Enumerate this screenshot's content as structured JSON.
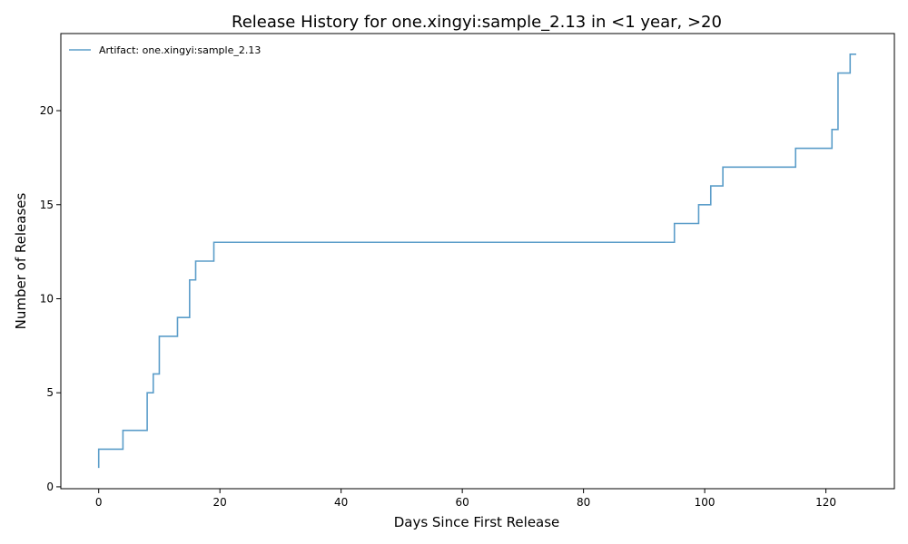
{
  "chart_data": {
    "type": "line",
    "step": "post",
    "title": "Release History for one.xingyi:sample_2.13 in <1 year, >20",
    "xlabel": "Days Since First Release",
    "ylabel": "Number of Releases",
    "xlim": [
      -6.25,
      131.3
    ],
    "ylim": [
      -0.1,
      24.1
    ],
    "xticks": [
      0,
      20,
      40,
      60,
      80,
      100,
      120
    ],
    "yticks": [
      0,
      5,
      10,
      15,
      20
    ],
    "grid": false,
    "legend_position": "top-left",
    "color": "#5b9dc9",
    "series": [
      {
        "name": "Artifact: one.xingyi:sample_2.13",
        "points": [
          [
            0,
            1
          ],
          [
            0,
            2
          ],
          [
            4,
            3
          ],
          [
            8,
            5
          ],
          [
            9,
            6
          ],
          [
            10,
            8
          ],
          [
            13,
            9
          ],
          [
            15,
            11
          ],
          [
            16,
            12
          ],
          [
            19,
            13
          ],
          [
            95,
            14
          ],
          [
            99,
            15
          ],
          [
            101,
            16
          ],
          [
            103,
            17
          ],
          [
            115,
            18
          ],
          [
            121,
            19
          ],
          [
            122,
            22
          ],
          [
            124,
            23
          ],
          [
            125,
            23
          ]
        ]
      }
    ]
  }
}
